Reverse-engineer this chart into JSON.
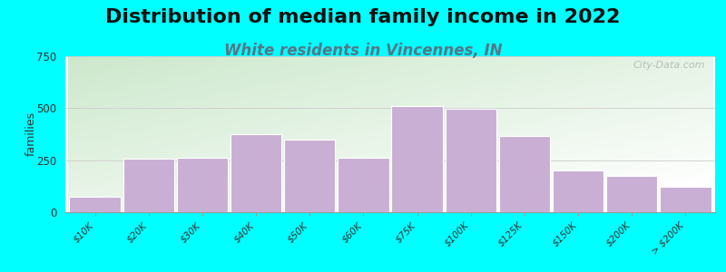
{
  "title": "Distribution of median family income in 2022",
  "subtitle": "White residents in Vincennes, IN",
  "ylabel": "families",
  "background_color": "#00FFFF",
  "plot_bg_top_left": "#cce8cc",
  "plot_bg_bottom_right": "#f8f8f0",
  "bar_color": "#c9afd4",
  "bar_edge_color": "#ffffff",
  "categories": [
    "$10K",
    "$20K",
    "$30K",
    "$40K",
    "$50K",
    "$60K",
    "$75K",
    "$100K",
    "$125K",
    "$150K",
    "$200K",
    "> $200K"
  ],
  "values": [
    75,
    255,
    260,
    375,
    350,
    260,
    510,
    495,
    365,
    200,
    175,
    120
  ],
  "ylim": [
    0,
    750
  ],
  "yticks": [
    0,
    250,
    500,
    750
  ],
  "title_fontsize": 16,
  "subtitle_fontsize": 12,
  "title_color": "#111111",
  "subtitle_color": "#557788",
  "watermark": "City-Data.com",
  "tick_label_fontsize": 7.5,
  "bar_width": 0.95
}
